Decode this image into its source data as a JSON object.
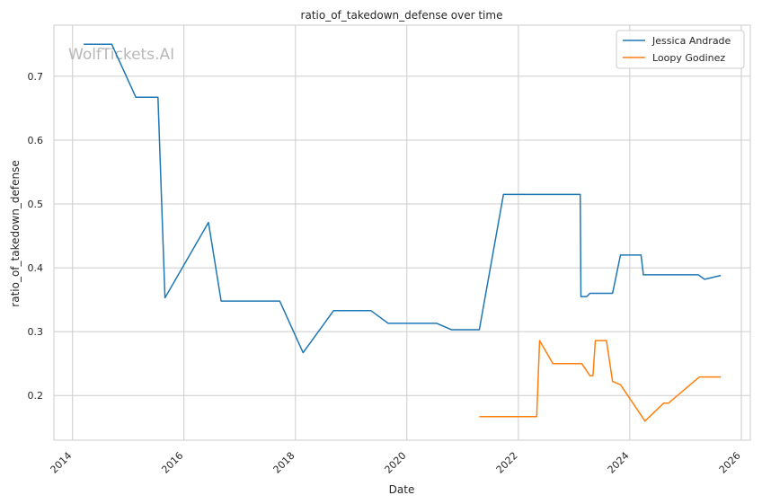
{
  "chart_data": {
    "type": "line",
    "title": "ratio_of_takedown_defense over time",
    "xlabel": "Date",
    "ylabel": "ratio_of_takedown_defense",
    "watermark": "WolfTickets.AI",
    "x_ticks": [
      "2014",
      "2016",
      "2018",
      "2020",
      "2022",
      "2024",
      "2026"
    ],
    "y_ticks": [
      "0.2",
      "0.3",
      "0.4",
      "0.5",
      "0.6",
      "0.7"
    ],
    "xlim": [
      "2013-09-01",
      "2026-03-01"
    ],
    "ylim": [
      0.13,
      0.78
    ],
    "grid": true,
    "legend_position": "top-right",
    "series": [
      {
        "name": "Jessica Andrade",
        "color": "#1f77b4",
        "points": [
          [
            "2014-03-15",
            0.75
          ],
          [
            "2014-09-15",
            0.75
          ],
          [
            "2015-02-20",
            0.667
          ],
          [
            "2015-07-15",
            0.667
          ],
          [
            "2015-08-30",
            0.353
          ],
          [
            "2016-06-10",
            0.471
          ],
          [
            "2016-09-01",
            0.348
          ],
          [
            "2017-09-20",
            0.348
          ],
          [
            "2018-02-20",
            0.267
          ],
          [
            "2018-09-08",
            0.333
          ],
          [
            "2019-05-10",
            0.333
          ],
          [
            "2019-09-01",
            0.313
          ],
          [
            "2020-07-15",
            0.313
          ],
          [
            "2020-10-20",
            0.303
          ],
          [
            "2021-04-20",
            0.303
          ],
          [
            "2021-09-25",
            0.515
          ],
          [
            "2023-02-10",
            0.515
          ],
          [
            "2023-02-15",
            0.355
          ],
          [
            "2023-03-25",
            0.355
          ],
          [
            "2023-04-15",
            0.36
          ],
          [
            "2023-09-10",
            0.36
          ],
          [
            "2023-11-01",
            0.42
          ],
          [
            "2024-03-15",
            0.42
          ],
          [
            "2024-03-30",
            0.389
          ],
          [
            "2025-03-25",
            0.389
          ],
          [
            "2025-05-05",
            0.382
          ],
          [
            "2025-08-20",
            0.388
          ]
        ]
      },
      {
        "name": "Loopy Godinez",
        "color": "#ff7f0e",
        "points": [
          [
            "2021-04-20",
            0.167
          ],
          [
            "2022-05-01",
            0.167
          ],
          [
            "2022-05-20",
            0.286
          ],
          [
            "2022-08-15",
            0.25
          ],
          [
            "2023-02-20",
            0.25
          ],
          [
            "2023-04-15",
            0.231
          ],
          [
            "2023-05-05",
            0.231
          ],
          [
            "2023-05-20",
            0.286
          ],
          [
            "2023-08-01",
            0.286
          ],
          [
            "2023-09-10",
            0.222
          ],
          [
            "2023-11-01",
            0.217
          ],
          [
            "2024-04-10",
            0.16
          ],
          [
            "2024-08-10",
            0.188
          ],
          [
            "2024-09-10",
            0.188
          ],
          [
            "2025-04-01",
            0.229
          ],
          [
            "2025-08-20",
            0.229
          ]
        ]
      }
    ]
  }
}
